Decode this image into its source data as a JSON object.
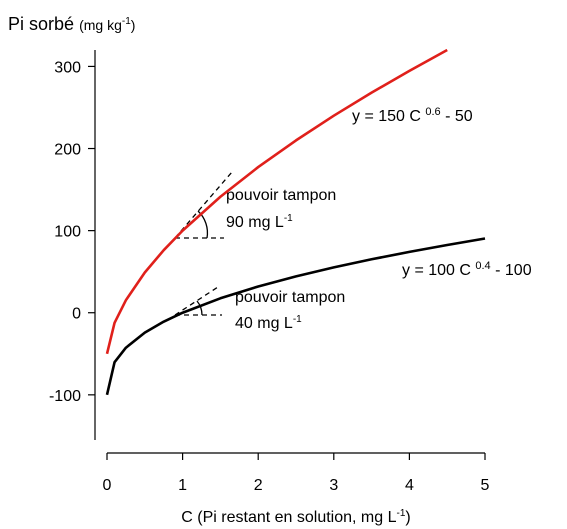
{
  "chart_data": {
    "type": "line",
    "title": {
      "text": "Pi sorbé",
      "unit": "(mg kg",
      "sup": "-1",
      "close": ")"
    },
    "x_label": {
      "text": "C (Pi restant en solution, mg L",
      "sup": "-1",
      "close": ")"
    },
    "x": [
      0,
      0.1,
      0.25,
      0.5,
      0.75,
      1,
      1.5,
      2,
      2.5,
      3,
      3.5,
      4,
      4.5,
      5
    ],
    "series": [
      {
        "name": "red",
        "color": "#e0201b",
        "values": [
          -50,
          -12.3,
          15.3,
          49.0,
          76.2,
          100,
          141.3,
          177.4,
          209.9,
          240.0,
          268.1,
          294.6,
          320.0,
          null
        ]
      },
      {
        "name": "black",
        "color": "#000000",
        "values": [
          -100,
          -60.2,
          -42.6,
          -24.2,
          -10.9,
          0,
          17.6,
          32.0,
          44.3,
          55.2,
          65.1,
          74.1,
          82.5,
          90.4
        ]
      }
    ],
    "xlim": [
      0,
      5
    ],
    "xticks": [
      0,
      1,
      2,
      3,
      4,
      5
    ],
    "ylim": [
      -155,
      320
    ],
    "yticks": [
      -100,
      0,
      100,
      200,
      300
    ],
    "annotations": [
      {
        "text": "y = 150 C ",
        "sup": "0.6",
        "after": " - 50"
      },
      {
        "text": "y = 100 C ",
        "sup": "0.4",
        "after": " - 100"
      },
      {
        "text": "pouvoir tampon",
        "line2": "90 mg L",
        "sup": "-1"
      },
      {
        "text": "pouvoir tampon",
        "line2": "40 mg L",
        "sup": "-1"
      }
    ]
  }
}
